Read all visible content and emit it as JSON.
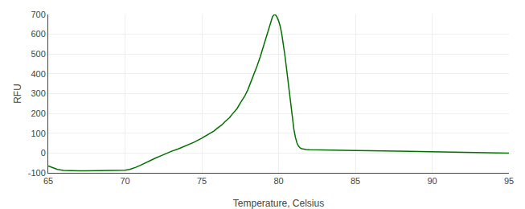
{
  "chart_data": {
    "type": "line",
    "xlabel": "Temperature, Celsius",
    "ylabel": "RFU",
    "color": "#007000",
    "grid": true,
    "xlim": [
      65,
      95
    ],
    "ylim": [
      -100,
      700
    ],
    "xticks": [
      65,
      70,
      75,
      80,
      85,
      90,
      95
    ],
    "yticks": [
      -100,
      0,
      100,
      200,
      300,
      400,
      500,
      600,
      700
    ],
    "x": [
      65.0,
      65.3,
      65.6,
      66.0,
      66.5,
      67.0,
      67.5,
      68.0,
      68.5,
      69.0,
      69.5,
      70.0,
      70.3,
      70.5,
      70.7,
      71.0,
      71.3,
      71.5,
      71.8,
      72.0,
      72.3,
      72.5,
      72.8,
      73.0,
      73.5,
      74.0,
      74.5,
      75.0,
      75.3,
      75.5,
      75.8,
      76.0,
      76.3,
      76.5,
      76.8,
      77.0,
      77.3,
      77.5,
      77.8,
      78.0,
      78.2,
      78.4,
      78.6,
      78.8,
      79.0,
      79.1,
      79.2,
      79.3,
      79.35,
      79.4,
      79.45,
      79.5,
      79.55,
      79.6,
      79.65,
      79.7,
      79.75,
      79.8,
      79.85,
      79.9,
      80.0,
      80.1,
      80.2,
      80.3,
      80.4,
      80.5,
      80.6,
      80.7,
      80.8,
      80.9,
      81.0,
      81.1,
      81.2,
      81.3,
      81.4,
      81.5,
      81.6,
      81.8,
      82.0,
      82.5,
      83.0,
      84.0,
      85.0,
      86.0,
      87.0,
      88.0,
      89.0,
      90.0,
      91.0,
      92.0,
      93.0,
      94.0,
      95.0
    ],
    "values": [
      -65,
      -75,
      -83,
      -88,
      -90,
      -90,
      -90,
      -90,
      -90,
      -90,
      -88,
      -87,
      -83,
      -78,
      -72,
      -62,
      -50,
      -42,
      -32,
      -25,
      -15,
      -8,
      0,
      8,
      22,
      38,
      55,
      75,
      88,
      98,
      112,
      125,
      142,
      158,
      178,
      198,
      225,
      252,
      288,
      320,
      358,
      398,
      440,
      485,
      535,
      560,
      585,
      610,
      625,
      640,
      655,
      668,
      678,
      688,
      694,
      698,
      700,
      698,
      694,
      686,
      668,
      642,
      605,
      558,
      500,
      438,
      370,
      300,
      232,
      170,
      118,
      78,
      50,
      35,
      26,
      22,
      20,
      18,
      17,
      16,
      15,
      14,
      13,
      12,
      11,
      10,
      8,
      7,
      5,
      3,
      2,
      1,
      0
    ]
  }
}
